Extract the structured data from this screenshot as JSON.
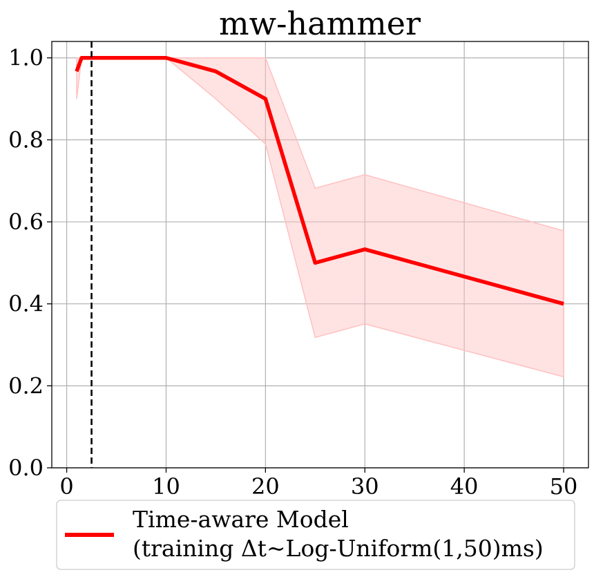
{
  "chart_data": {
    "type": "line",
    "title": "mw-hammer",
    "xlabel": "",
    "ylabel": "",
    "xlim": [
      -1.5,
      52.5
    ],
    "ylim": [
      0,
      1.04
    ],
    "xticks": [
      0,
      10,
      20,
      30,
      40,
      50
    ],
    "yticks": [
      0.0,
      0.2,
      0.4,
      0.6,
      0.8,
      1.0
    ],
    "xtick_labels": [
      "0",
      "10",
      "20",
      "30",
      "40",
      "50"
    ],
    "ytick_labels": [
      "0.0",
      "0.2",
      "0.4",
      "0.6",
      "0.8",
      "1.0"
    ],
    "grid": true,
    "legend_position": "bottom",
    "series": [
      {
        "name": "Time-aware Model",
        "name_line2": "(training Δt~Log-Uniform(1,50)ms)",
        "color": "#ff0000",
        "band_color": "#ffc0c0",
        "x": [
          1,
          1.5,
          2,
          2.5,
          10,
          15,
          20,
          25,
          30,
          50
        ],
        "y": [
          0.967,
          1.0,
          1.0,
          1.0,
          1.0,
          0.967,
          0.9,
          0.5,
          0.533,
          0.4
        ],
        "y_lower": [
          0.9,
          1.0,
          1.0,
          1.0,
          1.0,
          0.9,
          0.79,
          0.318,
          0.351,
          0.222
        ],
        "y_upper": [
          1.0,
          1.0,
          1.0,
          1.0,
          1.0,
          1.0,
          1.0,
          0.682,
          0.715,
          0.578
        ]
      }
    ],
    "vline": {
      "x": 2.5,
      "color": "#000000",
      "style": "dashed"
    }
  }
}
